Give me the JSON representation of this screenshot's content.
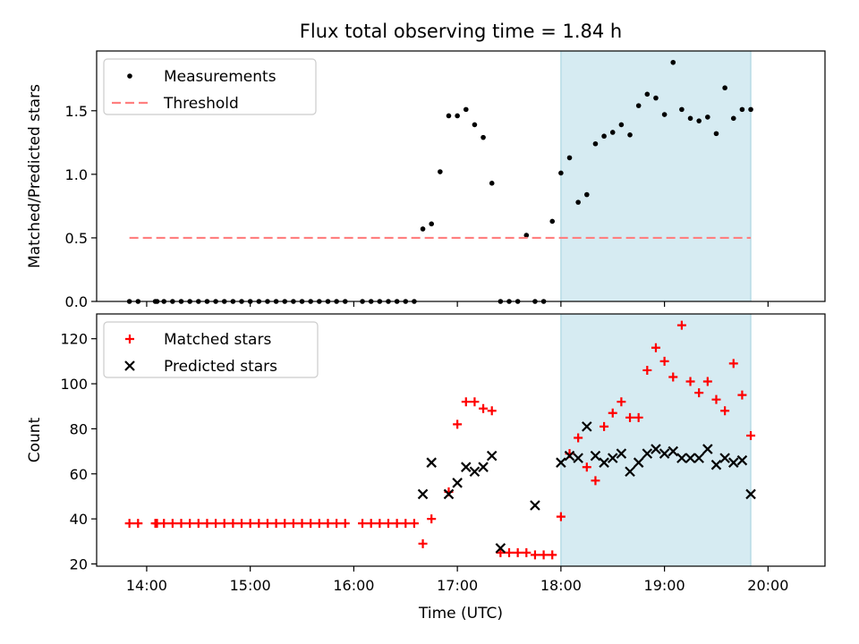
{
  "figure_title": "Flux total observing time = 1.84 h",
  "chart_data": [
    {
      "type": "scatter",
      "ylabel": "Matched/Predicted stars",
      "xlim": [
        "13:31",
        "20:33"
      ],
      "ylim": [
        0,
        1.97
      ],
      "x_ticks": [
        "14:00",
        "15:00",
        "16:00",
        "17:00",
        "18:00",
        "19:00",
        "20:00"
      ],
      "y_ticks": [
        "0.0",
        "0.5",
        "1.0",
        "1.5"
      ],
      "shaded_region": {
        "x_start": "18:00",
        "x_end": "19:50",
        "color": "#add8e6"
      },
      "legend": {
        "position": "top-left",
        "entries": [
          "Measurements",
          "Threshold"
        ]
      },
      "series": [
        {
          "name": "Measurements",
          "marker": "dot",
          "color": "#000000",
          "x": [
            "13:50",
            "13:55",
            "14:05",
            "14:06",
            "14:10",
            "14:15",
            "14:20",
            "14:25",
            "14:30",
            "14:35",
            "14:40",
            "14:45",
            "14:50",
            "14:55",
            "15:00",
            "15:05",
            "15:10",
            "15:15",
            "15:20",
            "15:25",
            "15:30",
            "15:35",
            "15:40",
            "15:45",
            "15:50",
            "15:55",
            "16:05",
            "16:10",
            "16:15",
            "16:20",
            "16:25",
            "16:30",
            "16:35",
            "16:40",
            "16:45",
            "16:50",
            "16:55",
            "17:00",
            "17:05",
            "17:10",
            "17:15",
            "17:20",
            "17:25",
            "17:30",
            "17:35",
            "17:40",
            "17:45",
            "17:50",
            "17:55",
            "18:00",
            "18:05",
            "18:10",
            "18:15",
            "18:20",
            "18:25",
            "18:30",
            "18:35",
            "18:40",
            "18:45",
            "18:50",
            "18:55",
            "19:00",
            "19:05",
            "19:10",
            "19:15",
            "19:20",
            "19:25",
            "19:30",
            "19:35",
            "19:40",
            "19:45",
            "19:50"
          ],
          "y": [
            0,
            0,
            0,
            0,
            0,
            0,
            0,
            0,
            0,
            0,
            0,
            0,
            0,
            0,
            0,
            0,
            0,
            0,
            0,
            0,
            0,
            0,
            0,
            0,
            0,
            0,
            0,
            0,
            0,
            0,
            0,
            0,
            0,
            0.57,
            0.61,
            1.02,
            1.46,
            1.46,
            1.51,
            1.39,
            1.29,
            0.93,
            0,
            0,
            0,
            0.52,
            0,
            0,
            0.63,
            1.01,
            1.13,
            0.78,
            0.84,
            1.24,
            1.3,
            1.33,
            1.39,
            1.31,
            1.54,
            1.63,
            1.6,
            1.47,
            1.88,
            1.51,
            1.44,
            1.42,
            1.45,
            1.32,
            1.68,
            1.44,
            1.51,
            1.51
          ]
        },
        {
          "name": "Threshold",
          "style": "dashed",
          "color": "#ff7f7f",
          "x": [
            "13:50",
            "19:50"
          ],
          "y": [
            0.5,
            0.5
          ]
        }
      ]
    },
    {
      "type": "scatter",
      "xlabel": "Time (UTC)",
      "ylabel": "Count",
      "xlim": [
        "13:31",
        "20:33"
      ],
      "ylim": [
        19,
        131
      ],
      "x_ticks": [
        "14:00",
        "15:00",
        "16:00",
        "17:00",
        "18:00",
        "19:00",
        "20:00"
      ],
      "y_ticks": [
        "20",
        "40",
        "60",
        "80",
        "100",
        "120"
      ],
      "shaded_region": {
        "x_start": "18:00",
        "x_end": "19:50",
        "color": "#add8e6"
      },
      "legend": {
        "position": "top-left",
        "entries": [
          "Matched stars",
          "Predicted stars"
        ]
      },
      "series": [
        {
          "name": "Matched stars",
          "marker": "plus",
          "color": "#ff0000",
          "x": [
            "13:50",
            "13:55",
            "14:05",
            "14:06",
            "14:10",
            "14:15",
            "14:20",
            "14:25",
            "14:30",
            "14:35",
            "14:40",
            "14:45",
            "14:50",
            "14:55",
            "15:00",
            "15:05",
            "15:10",
            "15:15",
            "15:20",
            "15:25",
            "15:30",
            "15:35",
            "15:40",
            "15:45",
            "15:50",
            "15:55",
            "16:05",
            "16:10",
            "16:15",
            "16:20",
            "16:25",
            "16:30",
            "16:35",
            "16:40",
            "16:45",
            "16:55",
            "17:00",
            "17:05",
            "17:10",
            "17:15",
            "17:20",
            "17:25",
            "17:30",
            "17:35",
            "17:40",
            "17:45",
            "17:50",
            "17:55",
            "18:00",
            "18:05",
            "18:10",
            "18:15",
            "18:20",
            "18:25",
            "18:30",
            "18:35",
            "18:40",
            "18:45",
            "18:50",
            "18:55",
            "19:00",
            "19:05",
            "19:10",
            "19:15",
            "19:20",
            "19:25",
            "19:30",
            "19:35",
            "19:40",
            "19:45",
            "19:50"
          ],
          "y": [
            38,
            38,
            38,
            38,
            38,
            38,
            38,
            38,
            38,
            38,
            38,
            38,
            38,
            38,
            38,
            38,
            38,
            38,
            38,
            38,
            38,
            38,
            38,
            38,
            38,
            38,
            38,
            38,
            38,
            38,
            38,
            38,
            38,
            29,
            40,
            52,
            82,
            92,
            92,
            89,
            88,
            25,
            25,
            25,
            25,
            24,
            24,
            24,
            41,
            69,
            76,
            63,
            57,
            81,
            87,
            92,
            85,
            85,
            106,
            116,
            110,
            103,
            126,
            101,
            96,
            101,
            93,
            88,
            109,
            95,
            77
          ]
        },
        {
          "name": "Predicted stars",
          "marker": "x",
          "color": "#000000",
          "x": [
            "16:40",
            "16:45",
            "16:55",
            "17:00",
            "17:05",
            "17:10",
            "17:15",
            "17:20",
            "17:25",
            "17:45",
            "18:00",
            "18:05",
            "18:10",
            "18:15",
            "18:20",
            "18:25",
            "18:30",
            "18:35",
            "18:40",
            "18:45",
            "18:50",
            "18:55",
            "19:00",
            "19:05",
            "19:10",
            "19:15",
            "19:20",
            "19:25",
            "19:30",
            "19:35",
            "19:40",
            "19:45",
            "19:50"
          ],
          "y": [
            51,
            65,
            51,
            56,
            63,
            61,
            63,
            68,
            27,
            46,
            65,
            68,
            67,
            81,
            68,
            65,
            67,
            69,
            61,
            65,
            69,
            71,
            69,
            70,
            67,
            67,
            67,
            71,
            64,
            67,
            65,
            66,
            51
          ]
        }
      ]
    }
  ]
}
